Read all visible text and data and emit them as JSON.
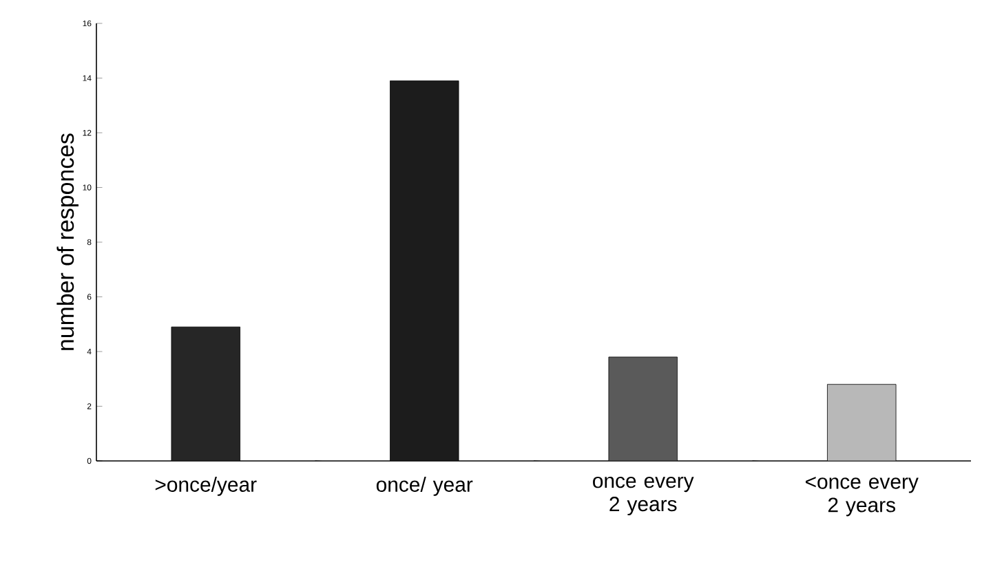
{
  "chart_data": {
    "type": "bar",
    "ylabel": "number of responces",
    "categories": [
      ">once/year",
      "once/ year",
      "once every 2 years",
      "<once every 2 years"
    ],
    "values": [
      4.9,
      13.9,
      3.8,
      2.8
    ],
    "colors": [
      "#262626",
      "#1c1c1c",
      "#5a5a5a",
      "#b8b8b8"
    ],
    "ylim": [
      0,
      16
    ],
    "yticks": [
      0,
      2,
      4,
      6,
      8,
      10,
      12,
      14,
      16
    ],
    "grid": false
  }
}
